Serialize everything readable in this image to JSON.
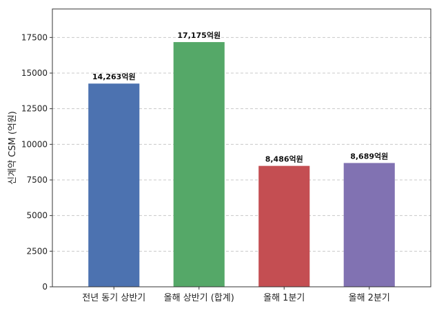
{
  "chart_data": {
    "type": "bar",
    "title": "",
    "xlabel": "",
    "ylabel": "신계약 CSM (억원)",
    "categories": [
      "전년 동기 상반기",
      "올해 상반기 (합계)",
      "올해 1분기",
      "올해 2분기"
    ],
    "values": [
      14263,
      17175,
      8486,
      8689
    ],
    "value_labels": [
      "14,263억원",
      "17,175억원",
      "8,486억원",
      "8,689억원"
    ],
    "colors": [
      "#4c72b0",
      "#55a868",
      "#c44e52",
      "#8172b2"
    ],
    "ylim": [
      0,
      19500
    ],
    "yticks": [
      0,
      2500,
      5000,
      7500,
      10000,
      12500,
      15000,
      17500
    ],
    "ytick_labels": [
      "0",
      "2500",
      "5000",
      "7500",
      "10000",
      "12500",
      "15000",
      "17500"
    ],
    "grid": true,
    "grid_axis": "y"
  }
}
